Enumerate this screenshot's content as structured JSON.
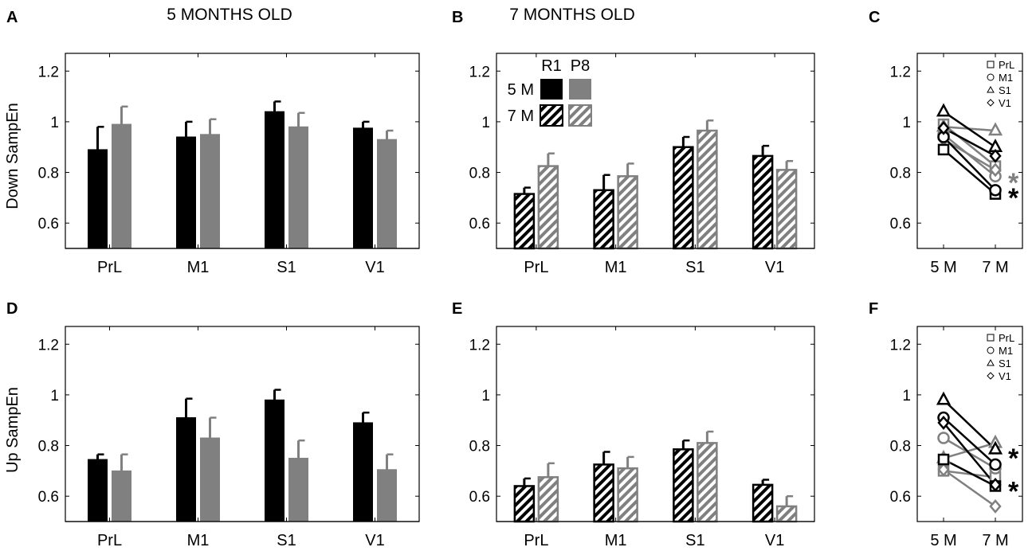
{
  "figure": {
    "column_titles": [
      "5 MONTHS OLD",
      "7 MONTHS OLD"
    ],
    "row_ylabels": [
      "Down SampEn",
      "Up SampEn"
    ],
    "legend": {
      "groups": [
        "R1",
        "P8"
      ],
      "ages": [
        "5 M",
        "7 M"
      ]
    },
    "scatter_legend": [
      "PrL",
      "M1",
      "S1",
      "V1"
    ],
    "significance_marker": "*"
  },
  "colors": {
    "R1": "#000000",
    "P8": "#808080"
  },
  "chart_data": [
    {
      "panel": "A",
      "type": "bar",
      "title": "5 MONTHS OLD",
      "ylabel": "Down SampEn",
      "xlabel": "",
      "categories": [
        "PrL",
        "M1",
        "S1",
        "V1"
      ],
      "ylim": [
        0.5,
        1.27
      ],
      "yticks": [
        0.6,
        0.8,
        1,
        1.2
      ],
      "yticklabels": [
        "0.6",
        "0.8",
        "1",
        "1.2"
      ],
      "hatched": false,
      "series": [
        {
          "name": "R1",
          "values": [
            0.89,
            0.94,
            1.04,
            0.975
          ],
          "errors": [
            0.09,
            0.06,
            0.04,
            0.025
          ]
        },
        {
          "name": "P8",
          "values": [
            0.99,
            0.95,
            0.98,
            0.93
          ],
          "errors": [
            0.07,
            0.06,
            0.055,
            0.035
          ]
        }
      ]
    },
    {
      "panel": "B",
      "type": "bar",
      "title": "7 MONTHS OLD",
      "ylabel": "",
      "xlabel": "",
      "categories": [
        "PrL",
        "M1",
        "S1",
        "V1"
      ],
      "ylim": [
        0.5,
        1.27
      ],
      "yticks": [
        0.6,
        0.8,
        1,
        1.2
      ],
      "yticklabels": [
        "0.6",
        "0.8",
        "1",
        "1.2"
      ],
      "hatched": true,
      "legend": true,
      "series": [
        {
          "name": "R1",
          "values": [
            0.715,
            0.73,
            0.9,
            0.865
          ],
          "errors": [
            0.025,
            0.06,
            0.04,
            0.04
          ]
        },
        {
          "name": "P8",
          "values": [
            0.825,
            0.785,
            0.965,
            0.81
          ],
          "errors": [
            0.05,
            0.05,
            0.04,
            0.035
          ]
        }
      ]
    },
    {
      "panel": "C",
      "type": "line",
      "ylabel": "",
      "xlabel": "",
      "x": [
        "5 M",
        "7 M"
      ],
      "ylim": [
        0.5,
        1.27
      ],
      "yticks": [
        0.6,
        0.8,
        1,
        1.2
      ],
      "yticklabels": [
        "0.6",
        "0.8",
        "1",
        "1.2"
      ],
      "stars": [
        {
          "series": "P8",
          "y": 0.78
        },
        {
          "series": "R1",
          "y": 0.72
        }
      ],
      "series": [
        {
          "name": "R1 PrL",
          "group": "R1",
          "region": "PrL",
          "marker": "square",
          "values": [
            0.89,
            0.715
          ]
        },
        {
          "name": "R1 M1",
          "group": "R1",
          "region": "M1",
          "marker": "circle",
          "values": [
            0.94,
            0.73
          ]
        },
        {
          "name": "R1 S1",
          "group": "R1",
          "region": "S1",
          "marker": "triangle",
          "values": [
            1.04,
            0.9
          ]
        },
        {
          "name": "R1 V1",
          "group": "R1",
          "region": "V1",
          "marker": "diamond",
          "values": [
            0.975,
            0.865
          ]
        },
        {
          "name": "P8 PrL",
          "group": "P8",
          "region": "PrL",
          "marker": "square",
          "values": [
            0.99,
            0.825
          ]
        },
        {
          "name": "P8 M1",
          "group": "P8",
          "region": "M1",
          "marker": "circle",
          "values": [
            0.95,
            0.785
          ]
        },
        {
          "name": "P8 S1",
          "group": "P8",
          "region": "S1",
          "marker": "triangle",
          "values": [
            0.98,
            0.965
          ]
        },
        {
          "name": "P8 V1",
          "group": "P8",
          "region": "V1",
          "marker": "diamond",
          "values": [
            0.93,
            0.81
          ]
        }
      ]
    },
    {
      "panel": "D",
      "type": "bar",
      "ylabel": "Up SampEn",
      "xlabel": "",
      "categories": [
        "PrL",
        "M1",
        "S1",
        "V1"
      ],
      "ylim": [
        0.5,
        1.27
      ],
      "yticks": [
        0.6,
        0.8,
        1,
        1.2
      ],
      "yticklabels": [
        "0.6",
        "0.8",
        "1",
        "1.2"
      ],
      "hatched": false,
      "series": [
        {
          "name": "R1",
          "values": [
            0.745,
            0.91,
            0.98,
            0.89
          ],
          "errors": [
            0.02,
            0.075,
            0.04,
            0.04
          ]
        },
        {
          "name": "P8",
          "values": [
            0.7,
            0.83,
            0.75,
            0.705
          ],
          "errors": [
            0.065,
            0.08,
            0.07,
            0.06
          ]
        }
      ]
    },
    {
      "panel": "E",
      "type": "bar",
      "ylabel": "",
      "xlabel": "",
      "categories": [
        "PrL",
        "M1",
        "S1",
        "V1"
      ],
      "ylim": [
        0.5,
        1.27
      ],
      "yticks": [
        0.6,
        0.8,
        1,
        1.2
      ],
      "yticklabels": [
        "0.6",
        "0.8",
        "1",
        "1.2"
      ],
      "hatched": true,
      "series": [
        {
          "name": "R1",
          "values": [
            0.64,
            0.725,
            0.785,
            0.645
          ],
          "errors": [
            0.03,
            0.05,
            0.035,
            0.02
          ]
        },
        {
          "name": "P8",
          "values": [
            0.675,
            0.71,
            0.81,
            0.56
          ],
          "errors": [
            0.055,
            0.045,
            0.045,
            0.04
          ]
        }
      ]
    },
    {
      "panel": "F",
      "type": "line",
      "ylabel": "",
      "xlabel": "",
      "x": [
        "5 M",
        "7 M"
      ],
      "ylim": [
        0.5,
        1.27
      ],
      "yticks": [
        0.6,
        0.8,
        1,
        1.2
      ],
      "yticklabels": [
        "0.6",
        "0.8",
        "1",
        "1.2"
      ],
      "stars": [
        {
          "series": "R1",
          "y": 0.77
        },
        {
          "series": "R1",
          "y": 0.64
        }
      ],
      "series": [
        {
          "name": "R1 PrL",
          "group": "R1",
          "region": "PrL",
          "marker": "square",
          "values": [
            0.745,
            0.64
          ]
        },
        {
          "name": "R1 M1",
          "group": "R1",
          "region": "M1",
          "marker": "circle",
          "values": [
            0.91,
            0.725
          ]
        },
        {
          "name": "R1 S1",
          "group": "R1",
          "region": "S1",
          "marker": "triangle",
          "values": [
            0.98,
            0.785
          ]
        },
        {
          "name": "R1 V1",
          "group": "R1",
          "region": "V1",
          "marker": "diamond",
          "values": [
            0.89,
            0.645
          ]
        },
        {
          "name": "P8 PrL",
          "group": "P8",
          "region": "PrL",
          "marker": "square",
          "values": [
            0.7,
            0.675
          ]
        },
        {
          "name": "P8 M1",
          "group": "P8",
          "region": "M1",
          "marker": "circle",
          "values": [
            0.83,
            0.71
          ]
        },
        {
          "name": "P8 S1",
          "group": "P8",
          "region": "S1",
          "marker": "triangle",
          "values": [
            0.75,
            0.81
          ]
        },
        {
          "name": "P8 V1",
          "group": "P8",
          "region": "V1",
          "marker": "diamond",
          "values": [
            0.705,
            0.56
          ]
        }
      ]
    }
  ]
}
